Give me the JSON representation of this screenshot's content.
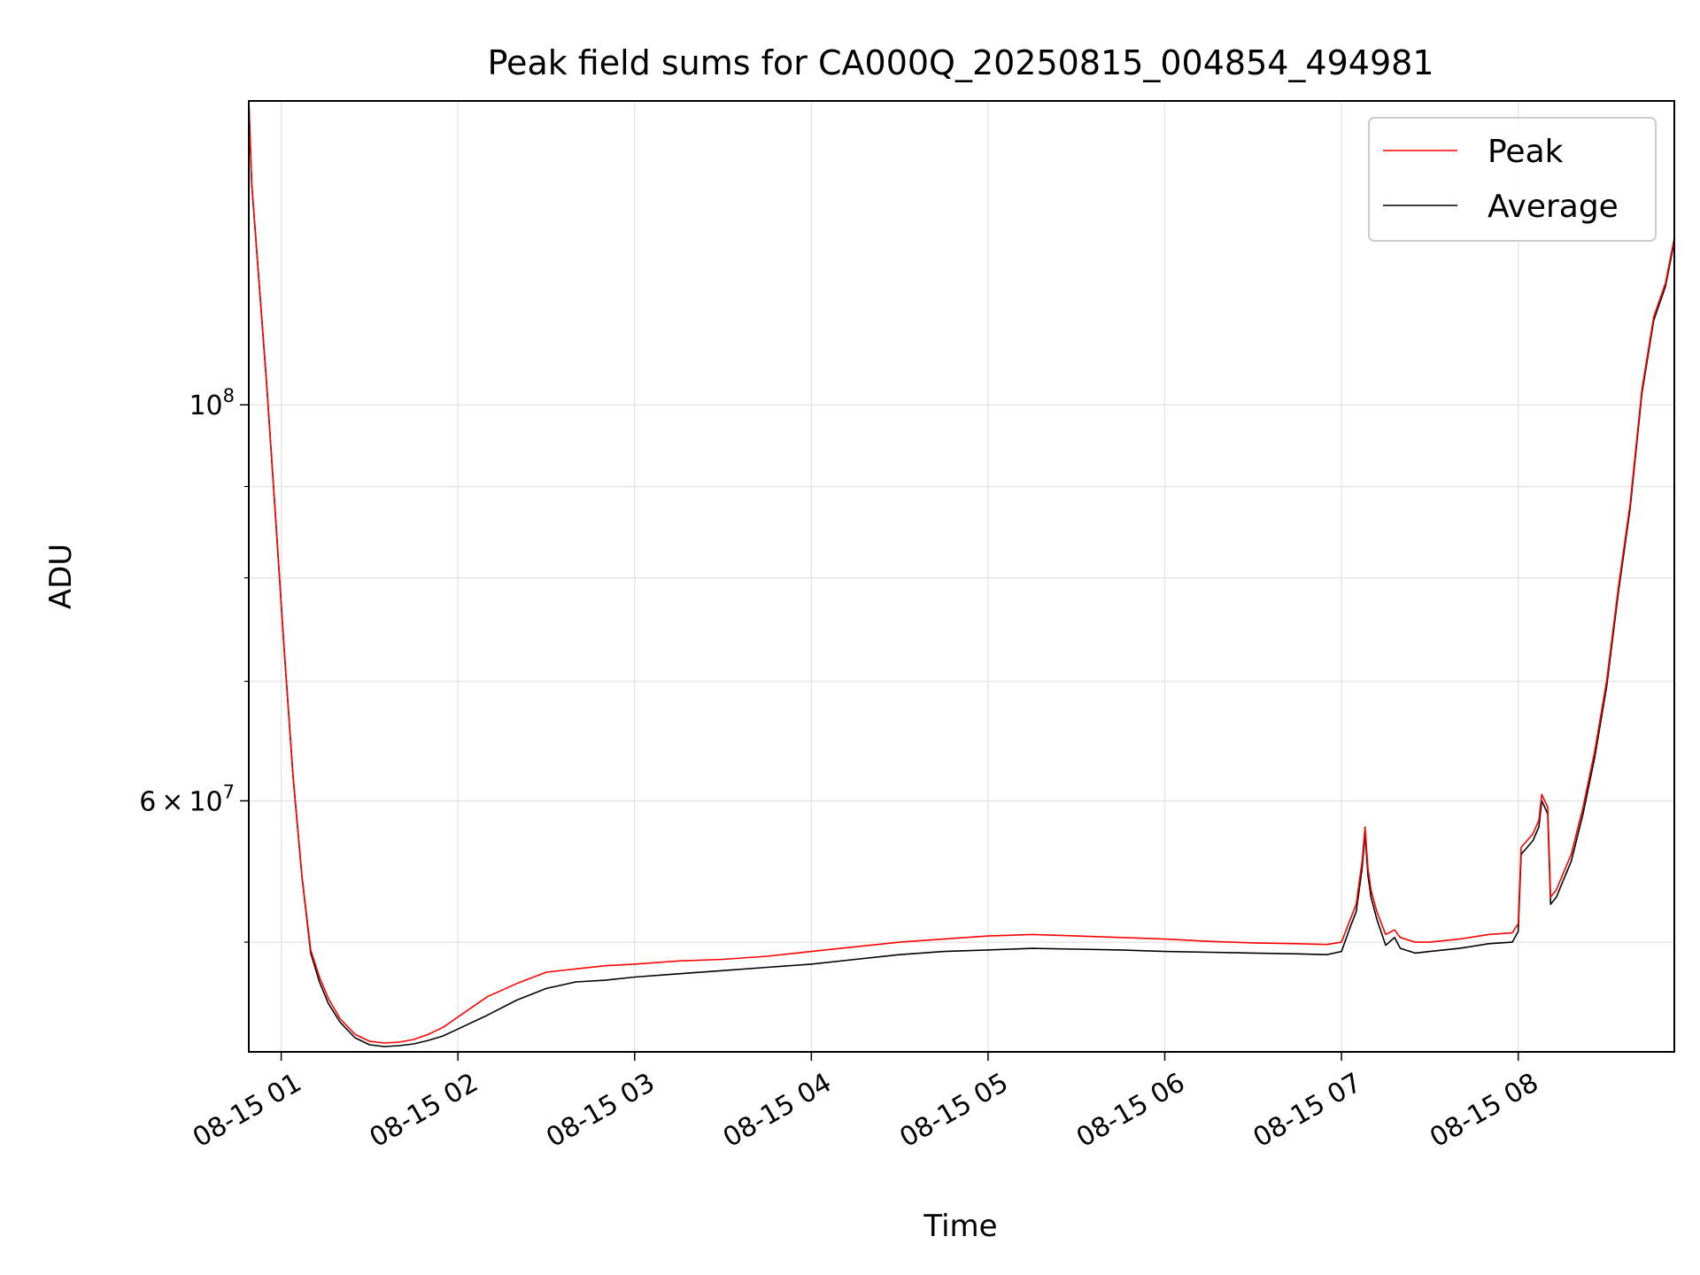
{
  "chart_data": {
    "type": "line",
    "title": "Peak field sums for CA000Q_20250815_004854_494981",
    "xlabel": "Time",
    "ylabel": "ADU",
    "y_scale": "log",
    "x_range": [
      "08-15 00:49",
      "08-15 08:53"
    ],
    "y_range": [
      43400000,
      148000000
    ],
    "x_ticks": [
      "08-15 01",
      "08-15 02",
      "08-15 03",
      "08-15 04",
      "08-15 05",
      "08-15 06",
      "08-15 07",
      "08-15 08"
    ],
    "y_ticks": [
      {
        "base": "10",
        "exp": "8",
        "value": 100000000
      },
      {
        "mant": "6",
        "times": "×",
        "base": "10",
        "exp": "7",
        "value": 60000000
      }
    ],
    "grid": true,
    "legend_position": "top-right",
    "series": [
      {
        "name": "Peak",
        "color": "#ff0000",
        "points": [
          [
            "00:49",
            148000000
          ],
          [
            "00:50",
            133000000
          ],
          [
            "00:52",
            120000000
          ],
          [
            "00:55",
            103000000
          ],
          [
            "00:58",
            87000000
          ],
          [
            "01:01",
            73000000
          ],
          [
            "01:04",
            62000000
          ],
          [
            "01:07",
            54500000
          ],
          [
            "01:10",
            49500000
          ],
          [
            "01:13",
            47800000
          ],
          [
            "01:16",
            46500000
          ],
          [
            "01:20",
            45300000
          ],
          [
            "01:25",
            44400000
          ],
          [
            "01:30",
            44000000
          ],
          [
            "01:35",
            43900000
          ],
          [
            "01:40",
            43950000
          ],
          [
            "01:45",
            44100000
          ],
          [
            "01:50",
            44400000
          ],
          [
            "01:55",
            44800000
          ],
          [
            "02:00",
            45400000
          ],
          [
            "02:10",
            46600000
          ],
          [
            "02:20",
            47400000
          ],
          [
            "02:30",
            48100000
          ],
          [
            "02:40",
            48300000
          ],
          [
            "02:50",
            48500000
          ],
          [
            "03:00",
            48600000
          ],
          [
            "03:15",
            48800000
          ],
          [
            "03:30",
            48900000
          ],
          [
            "03:45",
            49100000
          ],
          [
            "04:00",
            49400000
          ],
          [
            "04:15",
            49700000
          ],
          [
            "04:30",
            50000000
          ],
          [
            "04:45",
            50200000
          ],
          [
            "05:00",
            50400000
          ],
          [
            "05:15",
            50500000
          ],
          [
            "05:30",
            50400000
          ],
          [
            "05:45",
            50300000
          ],
          [
            "06:00",
            50200000
          ],
          [
            "06:15",
            50050000
          ],
          [
            "06:30",
            49950000
          ],
          [
            "06:45",
            49900000
          ],
          [
            "06:55",
            49850000
          ],
          [
            "07:00",
            50000000
          ],
          [
            "07:03",
            51500000
          ],
          [
            "07:05",
            52500000
          ],
          [
            "07:07",
            55500000
          ],
          [
            "07:08",
            58000000
          ],
          [
            "07:09",
            55000000
          ],
          [
            "07:10",
            53500000
          ],
          [
            "07:12",
            52000000
          ],
          [
            "07:15",
            50500000
          ],
          [
            "07:18",
            50800000
          ],
          [
            "07:20",
            50300000
          ],
          [
            "07:25",
            50000000
          ],
          [
            "07:30",
            50000000
          ],
          [
            "07:40",
            50200000
          ],
          [
            "07:50",
            50500000
          ],
          [
            "07:58",
            50600000
          ],
          [
            "08:00",
            51200000
          ],
          [
            "08:01",
            56500000
          ],
          [
            "08:03",
            57000000
          ],
          [
            "08:05",
            57500000
          ],
          [
            "08:07",
            58500000
          ],
          [
            "08:08",
            60500000
          ],
          [
            "08:10",
            59500000
          ],
          [
            "08:11",
            53000000
          ],
          [
            "08:13",
            53500000
          ],
          [
            "08:15",
            54500000
          ],
          [
            "08:18",
            56000000
          ],
          [
            "08:22",
            59500000
          ],
          [
            "08:26",
            64000000
          ],
          [
            "08:30",
            70000000
          ],
          [
            "08:34",
            79000000
          ],
          [
            "08:38",
            88000000
          ],
          [
            "08:42",
            102000000
          ],
          [
            "08:46",
            112000000
          ],
          [
            "08:50",
            117000000
          ],
          [
            "08:53",
            124000000
          ]
        ]
      },
      {
        "name": "Average",
        "color": "#000000",
        "points": [
          [
            "00:49",
            148000000
          ],
          [
            "00:50",
            133000000
          ],
          [
            "00:52",
            120000000
          ],
          [
            "00:55",
            103000000
          ],
          [
            "00:58",
            87000000
          ],
          [
            "01:01",
            73000000
          ],
          [
            "01:04",
            62000000
          ],
          [
            "01:07",
            54500000
          ],
          [
            "01:10",
            49300000
          ],
          [
            "01:13",
            47500000
          ],
          [
            "01:16",
            46200000
          ],
          [
            "01:20",
            45100000
          ],
          [
            "01:25",
            44200000
          ],
          [
            "01:30",
            43800000
          ],
          [
            "01:35",
            43700000
          ],
          [
            "01:40",
            43750000
          ],
          [
            "01:45",
            43850000
          ],
          [
            "01:50",
            44050000
          ],
          [
            "01:55",
            44300000
          ],
          [
            "02:00",
            44700000
          ],
          [
            "02:10",
            45500000
          ],
          [
            "02:20",
            46400000
          ],
          [
            "02:30",
            47100000
          ],
          [
            "02:40",
            47500000
          ],
          [
            "02:50",
            47600000
          ],
          [
            "03:00",
            47800000
          ],
          [
            "03:15",
            48000000
          ],
          [
            "03:30",
            48200000
          ],
          [
            "03:45",
            48400000
          ],
          [
            "04:00",
            48600000
          ],
          [
            "04:15",
            48900000
          ],
          [
            "04:30",
            49200000
          ],
          [
            "04:45",
            49400000
          ],
          [
            "05:00",
            49500000
          ],
          [
            "05:15",
            49600000
          ],
          [
            "05:30",
            49550000
          ],
          [
            "05:45",
            49500000
          ],
          [
            "06:00",
            49400000
          ],
          [
            "06:15",
            49350000
          ],
          [
            "06:30",
            49300000
          ],
          [
            "06:45",
            49250000
          ],
          [
            "06:55",
            49200000
          ],
          [
            "07:00",
            49400000
          ],
          [
            "07:03",
            51000000
          ],
          [
            "07:05",
            52000000
          ],
          [
            "07:07",
            55000000
          ],
          [
            "07:08",
            57500000
          ],
          [
            "07:09",
            54500000
          ],
          [
            "07:10",
            53000000
          ],
          [
            "07:12",
            51500000
          ],
          [
            "07:15",
            49800000
          ],
          [
            "07:18",
            50300000
          ],
          [
            "07:20",
            49600000
          ],
          [
            "07:25",
            49300000
          ],
          [
            "07:30",
            49400000
          ],
          [
            "07:40",
            49600000
          ],
          [
            "07:50",
            49900000
          ],
          [
            "07:58",
            50000000
          ],
          [
            "08:00",
            50700000
          ],
          [
            "08:01",
            56000000
          ],
          [
            "08:03",
            56500000
          ],
          [
            "08:05",
            57000000
          ],
          [
            "08:07",
            58000000
          ],
          [
            "08:08",
            60000000
          ],
          [
            "08:10",
            59000000
          ],
          [
            "08:11",
            52500000
          ],
          [
            "08:13",
            53000000
          ],
          [
            "08:15",
            54000000
          ],
          [
            "08:18",
            55500000
          ],
          [
            "08:22",
            59000000
          ],
          [
            "08:26",
            63500000
          ],
          [
            "08:30",
            69500000
          ],
          [
            "08:34",
            78500000
          ],
          [
            "08:38",
            87500000
          ],
          [
            "08:42",
            101500000
          ],
          [
            "08:46",
            111500000
          ],
          [
            "08:50",
            116500000
          ],
          [
            "08:53",
            123500000
          ]
        ]
      }
    ]
  }
}
